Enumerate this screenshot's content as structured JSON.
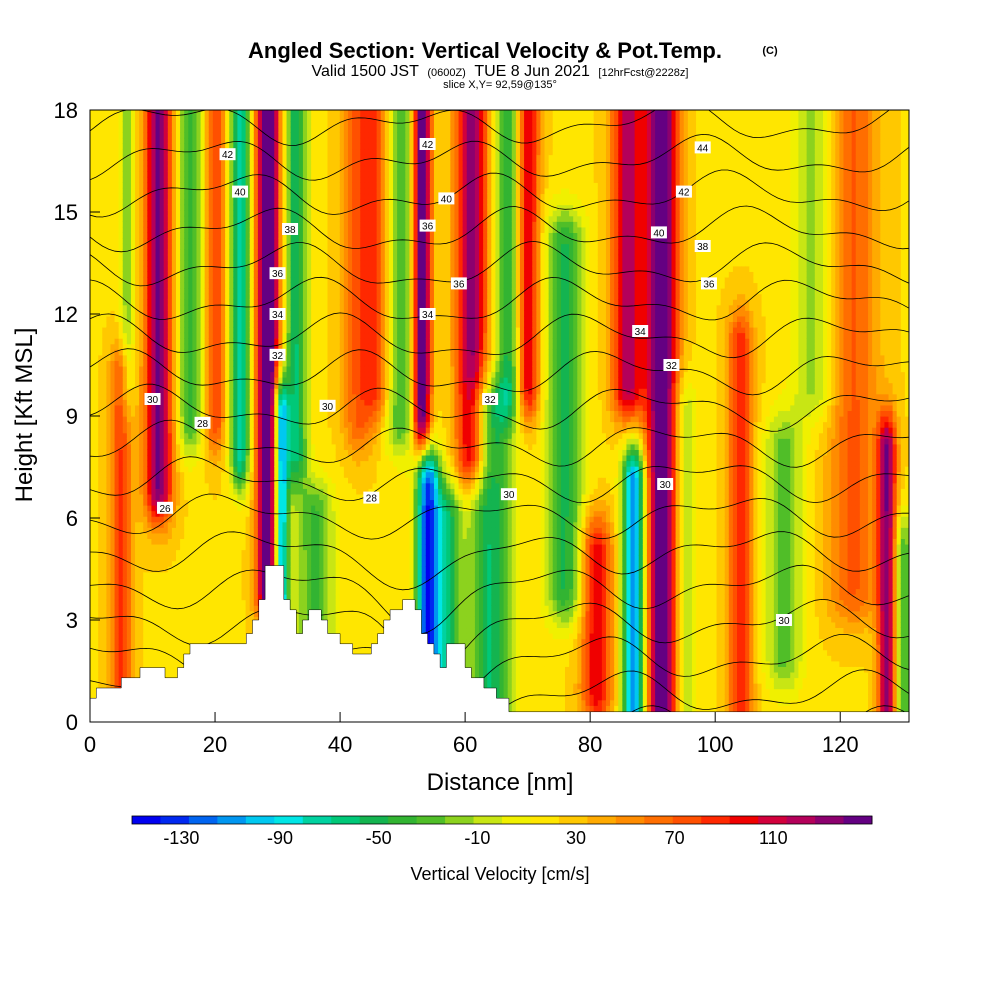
{
  "header": {
    "title_main": "Angled Section: Vertical Velocity & Pot.Temp.",
    "title_tag": "(C)",
    "valid_prefix": "Valid 1500 JST",
    "valid_utc": "(0600Z)",
    "valid_date": "TUE 8 Jun 2021",
    "valid_fcst": "[12hrFcst@2228z]",
    "slice": "slice X,Y= 92,59@135°"
  },
  "chart_data": {
    "type": "heatmap",
    "xlabel": "Distance [nm]",
    "ylabel": "Height [Kft MSL]",
    "xlim": [
      0,
      131
    ],
    "ylim": [
      0,
      18
    ],
    "x_ticks": [
      "0",
      "20",
      "40",
      "60",
      "80",
      "100",
      "120"
    ],
    "x_tick_values": [
      0,
      20,
      40,
      60,
      80,
      100,
      120
    ],
    "y_ticks": [
      "0",
      "3",
      "6",
      "9",
      "12",
      "15",
      "18"
    ],
    "y_tick_values": [
      0,
      3,
      6,
      9,
      12,
      15,
      18
    ],
    "colorbar": {
      "label": "Vertical Velocity [cm/s]",
      "tick_labels": [
        "-130",
        "-90",
        "-50",
        "-10",
        "30",
        "70",
        "110"
      ],
      "tick_values": [
        -130,
        -90,
        -50,
        -10,
        30,
        70,
        110
      ],
      "range": [
        -150,
        150
      ],
      "colors": [
        "#0000f0",
        "#0028f0",
        "#0064f0",
        "#0096f0",
        "#00c8f0",
        "#00e6e6",
        "#00d2a0",
        "#00c878",
        "#14b450",
        "#32b432",
        "#50be28",
        "#8cd21e",
        "#c8e614",
        "#f0f000",
        "#ffe600",
        "#ffc800",
        "#ffaa00",
        "#ff8c00",
        "#ff6e00",
        "#ff5000",
        "#ff2800",
        "#f00000",
        "#d2003c",
        "#b4005a",
        "#8c006e",
        "#640082"
      ]
    },
    "updraft_columns": [
      {
        "x": 5,
        "w": 1.8,
        "amp": 60,
        "z0": 0,
        "z1": 10
      },
      {
        "x": 11,
        "w": 2.2,
        "amp": 120,
        "z0": 7,
        "z1": 18
      },
      {
        "x": 20,
        "w": 1.5,
        "amp": 60,
        "z0": 9,
        "z1": 18
      },
      {
        "x": 28.5,
        "w": 1.8,
        "amp": 150,
        "z0": 4,
        "z1": 18
      },
      {
        "x": 43,
        "w": 2.5,
        "amp": 50,
        "z0": 9,
        "z1": 18
      },
      {
        "x": 46,
        "w": 2.0,
        "amp": 60,
        "z0": 10,
        "z1": 18
      },
      {
        "x": 53,
        "w": 1.5,
        "amp": 150,
        "z0": 9,
        "z1": 18
      },
      {
        "x": 61,
        "w": 2.5,
        "amp": 110,
        "z0": 8,
        "z1": 18
      },
      {
        "x": 70,
        "w": 1.8,
        "amp": 90,
        "z0": 10,
        "z1": 18
      },
      {
        "x": 81,
        "w": 2.5,
        "amp": 80,
        "z0": 1,
        "z1": 5
      },
      {
        "x": 86,
        "w": 2.5,
        "amp": 100,
        "z0": 10,
        "z1": 18
      },
      {
        "x": 91.5,
        "w": 2.5,
        "amp": 140,
        "z0": 0,
        "z1": 18
      },
      {
        "x": 104,
        "w": 2.0,
        "amp": 70,
        "z0": 0,
        "z1": 11
      },
      {
        "x": 122,
        "w": 4.0,
        "amp": 50,
        "z0": 4,
        "z1": 18
      },
      {
        "x": 127.5,
        "w": 1.5,
        "amp": 110,
        "z0": 0,
        "z1": 8
      }
    ],
    "downdraft_columns": [
      {
        "x": 6,
        "w": 1.2,
        "amp": 40,
        "z0": 10,
        "z1": 18
      },
      {
        "x": 16,
        "w": 2.0,
        "amp": 60,
        "z0": 9,
        "z1": 18
      },
      {
        "x": 24,
        "w": 1.5,
        "amp": 100,
        "z0": 8,
        "z1": 18
      },
      {
        "x": 30.5,
        "w": 1.2,
        "amp": 150,
        "z0": 2,
        "z1": 9
      },
      {
        "x": 33,
        "w": 1.8,
        "amp": 80,
        "z0": 8,
        "z1": 18
      },
      {
        "x": 36,
        "w": 3.0,
        "amp": 60,
        "z0": 2,
        "z1": 6
      },
      {
        "x": 50,
        "w": 3.0,
        "amp": 60,
        "z0": 9,
        "z1": 18
      },
      {
        "x": 54,
        "w": 1.8,
        "amp": 150,
        "z0": 2,
        "z1": 7
      },
      {
        "x": 57,
        "w": 2.2,
        "amp": 80,
        "z0": 0,
        "z1": 6
      },
      {
        "x": 64,
        "w": 3.5,
        "amp": 80,
        "z0": 0,
        "z1": 9
      },
      {
        "x": 67,
        "w": 2.0,
        "amp": 70,
        "z0": 10,
        "z1": 18
      },
      {
        "x": 76,
        "w": 3.0,
        "amp": 70,
        "z0": 4,
        "z1": 14
      },
      {
        "x": 87,
        "w": 1.8,
        "amp": 140,
        "z0": 0,
        "z1": 7
      },
      {
        "x": 95,
        "w": 2.0,
        "amp": 40,
        "z0": 0,
        "z1": 9
      },
      {
        "x": 111,
        "w": 3.0,
        "amp": 50,
        "z0": 2,
        "z1": 8
      },
      {
        "x": 116,
        "w": 3.5,
        "amp": 40,
        "z0": 10,
        "z1": 18
      },
      {
        "x": 130,
        "w": 1.5,
        "amp": 60,
        "z0": 0,
        "z1": 5
      }
    ],
    "terrain": [
      [
        0,
        0.7
      ],
      [
        1,
        0.7
      ],
      [
        1,
        1.0
      ],
      [
        5,
        1.0
      ],
      [
        5,
        1.3
      ],
      [
        8,
        1.3
      ],
      [
        8,
        1.6
      ],
      [
        12,
        1.6
      ],
      [
        12,
        1.3
      ],
      [
        14,
        1.3
      ],
      [
        14,
        1.6
      ],
      [
        15,
        1.6
      ],
      [
        15,
        2.0
      ],
      [
        16,
        2.0
      ],
      [
        16,
        2.3
      ],
      [
        25,
        2.3
      ],
      [
        25,
        2.6
      ],
      [
        26,
        2.6
      ],
      [
        26,
        3.0
      ],
      [
        27,
        3.0
      ],
      [
        27,
        3.6
      ],
      [
        28,
        3.6
      ],
      [
        28,
        4.6
      ],
      [
        31,
        4.6
      ],
      [
        31,
        3.6
      ],
      [
        32,
        3.6
      ],
      [
        32,
        3.3
      ],
      [
        33,
        3.3
      ],
      [
        33,
        2.6
      ],
      [
        34,
        2.6
      ],
      [
        34,
        3.0
      ],
      [
        35,
        3.0
      ],
      [
        35,
        3.3
      ],
      [
        37,
        3.3
      ],
      [
        37,
        3.0
      ],
      [
        38,
        3.0
      ],
      [
        38,
        2.6
      ],
      [
        40,
        2.6
      ],
      [
        40,
        2.3
      ],
      [
        42,
        2.3
      ],
      [
        42,
        2.0
      ],
      [
        45,
        2.0
      ],
      [
        45,
        2.3
      ],
      [
        46,
        2.3
      ],
      [
        46,
        2.6
      ],
      [
        47,
        2.6
      ],
      [
        47,
        3.0
      ],
      [
        48,
        3.0
      ],
      [
        48,
        3.3
      ],
      [
        50,
        3.3
      ],
      [
        50,
        3.6
      ],
      [
        52,
        3.6
      ],
      [
        52,
        3.3
      ],
      [
        53,
        3.3
      ],
      [
        53,
        2.6
      ],
      [
        54,
        2.6
      ],
      [
        54,
        2.3
      ],
      [
        55,
        2.3
      ],
      [
        55,
        2.0
      ],
      [
        56,
        2.0
      ],
      [
        56,
        1.6
      ],
      [
        57,
        1.6
      ],
      [
        57,
        2.3
      ],
      [
        60,
        2.3
      ],
      [
        60,
        1.6
      ],
      [
        61,
        1.6
      ],
      [
        61,
        1.3
      ],
      [
        63,
        1.3
      ],
      [
        63,
        1.0
      ],
      [
        65,
        1.0
      ],
      [
        65,
        0.7
      ],
      [
        67,
        0.7
      ],
      [
        67,
        0.3
      ],
      [
        131,
        0.3
      ]
    ],
    "theta_levels": [
      26,
      27,
      28,
      29,
      30,
      31,
      32,
      33,
      34,
      35,
      36,
      37,
      38,
      39,
      40,
      41,
      42,
      43,
      44,
      45
    ],
    "contour_labels": [
      {
        "v": "42",
        "x": 22,
        "y": 16.7
      },
      {
        "v": "40",
        "x": 24,
        "y": 15.6
      },
      {
        "v": "38",
        "x": 32,
        "y": 14.5
      },
      {
        "v": "36",
        "x": 30,
        "y": 13.2
      },
      {
        "v": "34",
        "x": 30,
        "y": 12.0
      },
      {
        "v": "32",
        "x": 30,
        "y": 10.8
      },
      {
        "v": "30",
        "x": 10,
        "y": 9.5
      },
      {
        "v": "28",
        "x": 18,
        "y": 8.8
      },
      {
        "v": "26",
        "x": 12,
        "y": 6.3
      },
      {
        "v": "30",
        "x": 38,
        "y": 9.3
      },
      {
        "v": "28",
        "x": 45,
        "y": 6.6
      },
      {
        "v": "42",
        "x": 54,
        "y": 17.0
      },
      {
        "v": "40",
        "x": 57,
        "y": 15.4
      },
      {
        "v": "36",
        "x": 54,
        "y": 14.6
      },
      {
        "v": "36",
        "x": 59,
        "y": 12.9
      },
      {
        "v": "34",
        "x": 54,
        "y": 12.0
      },
      {
        "v": "32",
        "x": 64,
        "y": 9.5
      },
      {
        "v": "30",
        "x": 67,
        "y": 6.7
      },
      {
        "v": "44",
        "x": 98,
        "y": 16.9
      },
      {
        "v": "42",
        "x": 95,
        "y": 15.6
      },
      {
        "v": "40",
        "x": 91,
        "y": 14.4
      },
      {
        "v": "38",
        "x": 98,
        "y": 14.0
      },
      {
        "v": "36",
        "x": 99,
        "y": 12.9
      },
      {
        "v": "34",
        "x": 88,
        "y": 11.5
      },
      {
        "v": "32",
        "x": 93,
        "y": 10.5
      },
      {
        "v": "30",
        "x": 92,
        "y": 7.0
      },
      {
        "v": "30",
        "x": 111,
        "y": 3.0
      }
    ]
  }
}
